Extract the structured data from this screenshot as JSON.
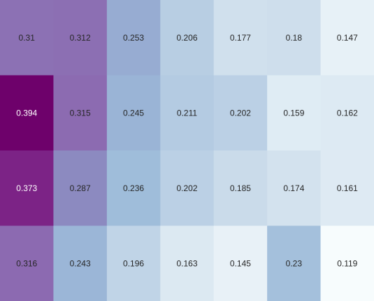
{
  "chart_data": {
    "type": "heatmap",
    "title": "",
    "xlabel": "",
    "ylabel": "",
    "rows": 4,
    "cols": 7,
    "values": [
      [
        0.31,
        0.312,
        0.253,
        0.206,
        0.177,
        0.18,
        0.147
      ],
      [
        0.394,
        0.315,
        0.245,
        0.211,
        0.202,
        0.159,
        0.162
      ],
      [
        0.373,
        0.287,
        0.236,
        0.202,
        0.185,
        0.174,
        0.161
      ],
      [
        0.316,
        0.243,
        0.196,
        0.163,
        0.145,
        0.23,
        0.119
      ]
    ],
    "labels": [
      [
        "0.31",
        "0.312",
        "0.253",
        "0.206",
        "0.177",
        "0.18",
        "0.147"
      ],
      [
        "0.394",
        "0.315",
        "0.245",
        "0.211",
        "0.202",
        "0.159",
        "0.162"
      ],
      [
        "0.373",
        "0.287",
        "0.236",
        "0.202",
        "0.185",
        "0.174",
        "0.161"
      ],
      [
        "0.316",
        "0.243",
        "0.196",
        "0.163",
        "0.145",
        "0.23",
        "0.119"
      ]
    ],
    "value_range": [
      0.119,
      0.394
    ],
    "colormap": "BuPu",
    "colormap_stops": [
      "#f7fcfd",
      "#e0ecf4",
      "#bfd3e6",
      "#9ebcda",
      "#8c96c6",
      "#8c6bb1",
      "#88419d",
      "#6e016b"
    ],
    "grid": false,
    "legend": "none",
    "label_colors": {
      "dark_cell": "#ffffff",
      "light_cell": "#262626"
    }
  }
}
